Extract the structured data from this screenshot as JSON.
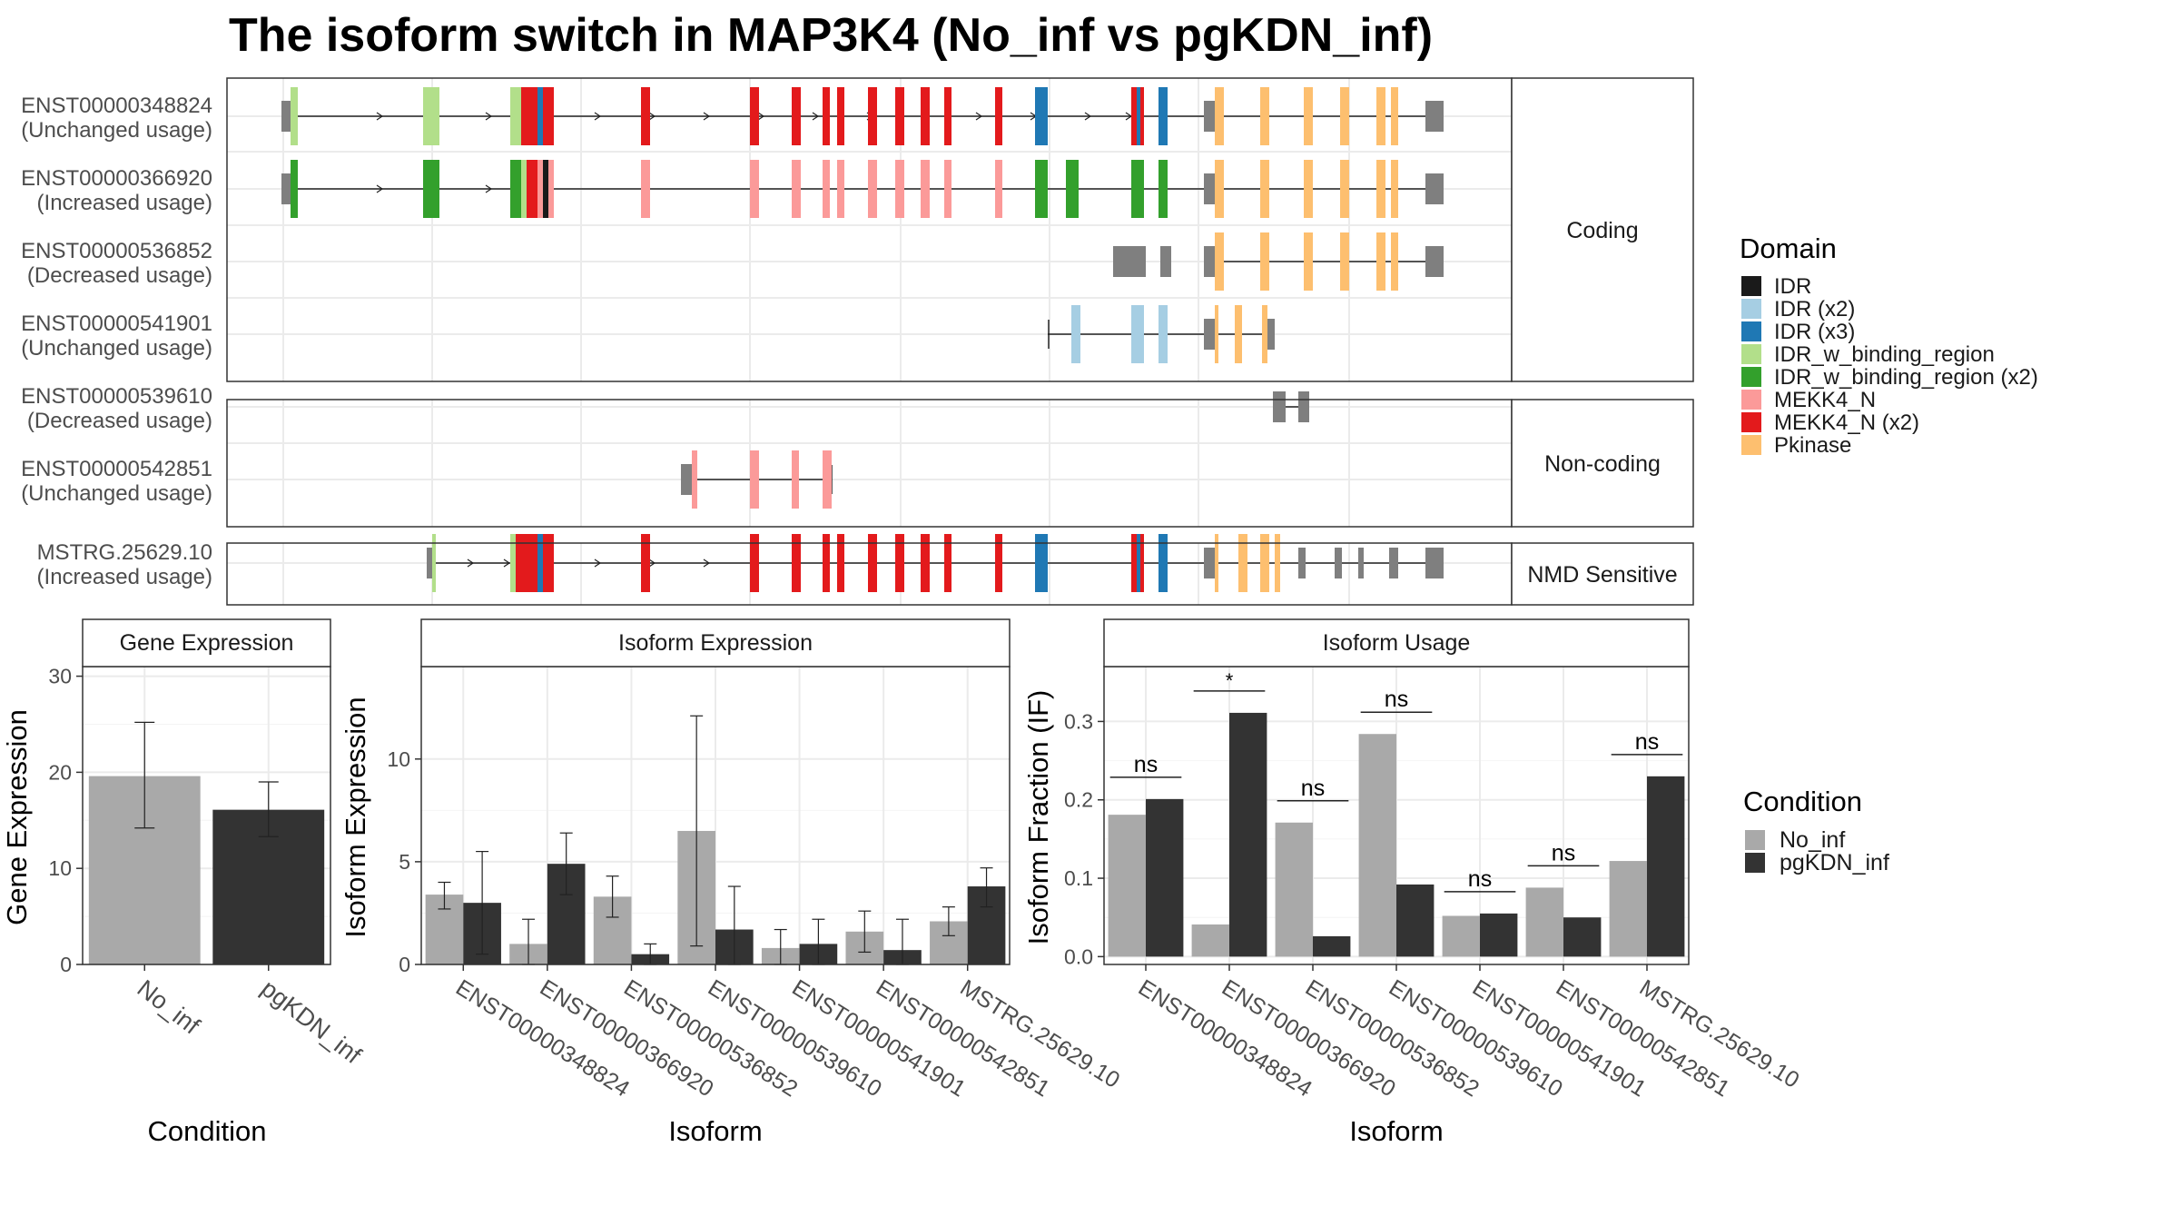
{
  "title": "The isoform switch in MAP3K4 (No_inf vs pgKDN_inf)",
  "colors": {
    "IDR": "#1a1a1a",
    "IDR (x2)": "#a6cee3",
    "IDR (x3)": "#1f78b4",
    "IDR_w_binding_region": "#b2df8a",
    "IDR_w_binding_region (x2)": "#33a02c",
    "MEKK4_N": "#fb9a99",
    "MEKK4_N (x2)": "#e31a1c",
    "Pkinase": "#fdbf6f",
    "utr": "#7f7f7f",
    "No_inf": "#a9a9a9",
    "pgKDN_inf": "#333333"
  },
  "structure": {
    "isoforms": [
      {
        "id": "ENST00000348824",
        "usage": "(Unchanged usage)",
        "group": 0
      },
      {
        "id": "ENST00000366920",
        "usage": "(Increased usage)",
        "group": 0
      },
      {
        "id": "ENST00000536852",
        "usage": "(Decreased usage)",
        "group": 0
      },
      {
        "id": "ENST00000541901",
        "usage": "(Unchanged usage)",
        "group": 0
      },
      {
        "id": "ENST00000539610",
        "usage": "(Decreased usage)",
        "group": 1
      },
      {
        "id": "ENST00000542851",
        "usage": "(Unchanged usage)",
        "group": 1
      },
      {
        "id": "MSTRG.25629.10",
        "usage": "(Increased usage)",
        "group": 2
      }
    ],
    "strips": [
      "Coding",
      "Non-coding",
      "NMD Sensitive"
    ]
  },
  "legend_domain": {
    "title": "Domain",
    "items": [
      "IDR",
      "IDR (x2)",
      "IDR (x3)",
      "IDR_w_binding_region",
      "IDR_w_binding_region (x2)",
      "MEKK4_N",
      "MEKK4_N (x2)",
      "Pkinase"
    ]
  },
  "legend_condition": {
    "title": "Condition",
    "items": [
      "No_inf",
      "pgKDN_inf"
    ]
  },
  "chart_data": [
    {
      "type": "bar",
      "strip": "Gene Expression",
      "xlabel": "Condition",
      "ylabel": "Gene Expression",
      "ylim": [
        0,
        31
      ],
      "yticks": [
        0,
        10,
        20,
        30
      ],
      "categories": [
        "No_inf",
        "pgKDN_inf"
      ],
      "values": [
        19.6,
        16.1
      ],
      "err_low": [
        14.2,
        13.3
      ],
      "err_high": [
        25.2,
        19.0
      ]
    },
    {
      "type": "bar",
      "strip": "Isoform Expression",
      "xlabel": "Isoform",
      "ylabel": "Isoform Expression",
      "ylim": [
        0,
        14.5
      ],
      "yticks": [
        0,
        5,
        10
      ],
      "categories": [
        "ENST00000348824",
        "ENST00000366920",
        "ENST00000536852",
        "ENST00000539610",
        "ENST00000541901",
        "ENST00000542851",
        "MSTRG.25629.10"
      ],
      "series": [
        {
          "name": "No_inf",
          "values": [
            3.4,
            1.0,
            3.3,
            6.5,
            0.8,
            1.6,
            2.1
          ],
          "err_low": [
            2.7,
            0.0,
            2.3,
            0.9,
            0.0,
            0.6,
            1.4
          ],
          "err_high": [
            4.0,
            2.2,
            4.3,
            12.1,
            1.7,
            2.6,
            2.8
          ]
        },
        {
          "name": "pgKDN_inf",
          "values": [
            3.0,
            4.9,
            0.5,
            1.7,
            1.0,
            0.7,
            3.8
          ],
          "err_low": [
            0.5,
            3.4,
            0.0,
            0.0,
            0.0,
            0.0,
            2.8
          ],
          "err_high": [
            5.5,
            6.4,
            1.0,
            3.8,
            2.2,
            2.2,
            4.7
          ]
        }
      ]
    },
    {
      "type": "bar",
      "strip": "Isoform Usage",
      "xlabel": "Isoform",
      "ylabel": "Isoform Fraction (IF)",
      "ylim": [
        -0.01,
        0.37
      ],
      "yticks": [
        0.0,
        0.1,
        0.2,
        0.3
      ],
      "ytick_labels": [
        "0.0",
        "0.1",
        "0.2",
        "0.3"
      ],
      "categories": [
        "ENST00000348824",
        "ENST00000366920",
        "ENST00000536852",
        "ENST00000539610",
        "ENST00000541901",
        "ENST00000542851",
        "MSTRG.25629.10"
      ],
      "series": [
        {
          "name": "No_inf",
          "values": [
            0.181,
            0.041,
            0.171,
            0.284,
            0.052,
            0.088,
            0.122
          ]
        },
        {
          "name": "pgKDN_inf",
          "values": [
            0.201,
            0.311,
            0.026,
            0.092,
            0.055,
            0.05,
            0.23
          ]
        }
      ],
      "annotations": [
        "ns",
        "*",
        "ns",
        "ns",
        "ns",
        "ns",
        "ns"
      ]
    }
  ]
}
